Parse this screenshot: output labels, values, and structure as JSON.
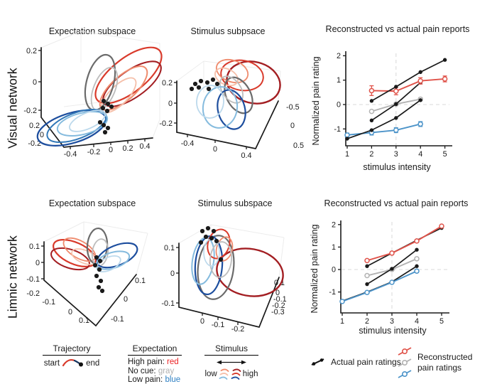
{
  "palette": {
    "red1": "#a31e22",
    "red2": "#ef8b6d",
    "red3": "#d93a2b",
    "red4": "#f5bfa9",
    "gray1": "#6b6b6b",
    "gray2": "#bdbdbd",
    "blue1": "#1d4e9e",
    "blue2": "#3178b8",
    "blue3": "#85bbde",
    "blue4": "#bcd9ec",
    "black": "#1a1a1a",
    "chart_red": "#e0534a",
    "chart_gray": "#b3b3b3",
    "chart_blue": "#4d94c9",
    "legend_red": "#ec2224",
    "legend_gray": "#b0b0b0",
    "legend_blue": "#2f80c3",
    "traj_end": "#16355e"
  },
  "rows": [
    {
      "label": "Visual network"
    },
    {
      "label": "Limnic network"
    }
  ],
  "panels": {
    "p1": {
      "title": "Expectation subspace",
      "z_ticks": [
        "0.2",
        "0",
        "-0.2"
      ],
      "d_ticks": [
        "0.2",
        "0",
        "-0.2"
      ],
      "x_ticks": [
        "-0.4",
        "-0.2",
        "0",
        "0.2",
        "0.4"
      ],
      "loops": [
        [
          "red3",
          153,
          76,
          56,
          24,
          -38,
          2.2
        ],
        [
          "red1",
          158,
          88,
          48,
          19,
          -35,
          2
        ],
        [
          "red2",
          146,
          94,
          42,
          17,
          -42,
          2
        ],
        [
          "red4",
          139,
          104,
          32,
          13,
          -45,
          1.8
        ],
        [
          "gray1",
          113,
          86,
          40,
          19,
          -75,
          2.2
        ],
        [
          "gray2",
          119,
          95,
          32,
          15,
          -68,
          1.8
        ],
        [
          "blue1",
          73,
          150,
          50,
          21,
          -17,
          2.2
        ],
        [
          "blue2",
          80,
          147,
          44,
          18,
          -21,
          2
        ],
        [
          "blue3",
          88,
          144,
          36,
          15,
          -14,
          2
        ],
        [
          "blue4",
          95,
          140,
          27,
          11,
          -24,
          1.8
        ]
      ],
      "dots": [
        [
          118,
          112
        ],
        [
          124,
          116
        ],
        [
          129,
          120
        ],
        [
          117,
          122
        ],
        [
          123,
          126
        ],
        [
          113,
          142
        ],
        [
          118,
          146
        ],
        [
          124,
          150
        ],
        [
          120,
          156
        ]
      ]
    },
    "p2": {
      "title": "Stimulus subpsace",
      "z_ticks": [
        "0.2",
        "0",
        "-0.2"
      ],
      "x_ticks": [
        "-0.4",
        "0",
        "0.4"
      ],
      "r_ticks": [
        "-0.5",
        "0",
        "0.5"
      ],
      "loops": [
        [
          "red1",
          122,
          86,
          38,
          29,
          14,
          2.4
        ],
        [
          "red3",
          106,
          76,
          30,
          21,
          10,
          2
        ],
        [
          "red2",
          92,
          70,
          23,
          15,
          20,
          1.8
        ],
        [
          "red4",
          84,
          78,
          17,
          11,
          25,
          1.8
        ],
        [
          "gray1",
          101,
          104,
          27,
          17,
          62,
          2.2
        ],
        [
          "gray2",
          91,
          96,
          21,
          13,
          55,
          1.8
        ],
        [
          "blue1",
          91,
          124,
          19,
          28,
          -14,
          2.2
        ],
        [
          "blue3",
          75,
          121,
          24,
          29,
          8,
          2
        ],
        [
          "blue4",
          61,
          113,
          19,
          23,
          4,
          1.8
        ]
      ],
      "dots": [
        [
          40,
          88
        ],
        [
          48,
          84
        ],
        [
          57,
          86
        ],
        [
          65,
          82
        ],
        [
          71,
          88
        ],
        [
          35,
          95
        ],
        [
          45,
          93
        ],
        [
          59,
          95
        ]
      ]
    },
    "p3": {
      "title": "Expectation subspace",
      "z_ticks": [
        "0.1",
        "0",
        "-0.1"
      ],
      "d_ticks": [
        "-0.2",
        "-0.1",
        "0",
        "0.1"
      ],
      "r_ticks": [
        "0.1",
        "0",
        "-0.1"
      ],
      "loops": [
        [
          "red3",
          77,
          80,
          32,
          15,
          24,
          2.2
        ],
        [
          "red1",
          71,
          88,
          28,
          13,
          18,
          2
        ],
        [
          "red2",
          84,
          75,
          25,
          12,
          30,
          1.8
        ],
        [
          "red4",
          91,
          85,
          19,
          9,
          22,
          1.6
        ],
        [
          "gray1",
          109,
          70,
          14,
          25,
          4,
          2.2
        ],
        [
          "gray2",
          113,
          79,
          11,
          19,
          8,
          1.8
        ],
        [
          "blue1",
          137,
          83,
          30,
          14,
          -22,
          2.2
        ],
        [
          "blue3",
          131,
          90,
          24,
          11,
          -17,
          2
        ],
        [
          "blue4",
          125,
          95,
          18,
          9,
          -25,
          1.8
        ]
      ],
      "dots": [
        [
          108,
          86
        ],
        [
          113,
          91
        ],
        [
          106,
          97
        ],
        [
          112,
          103
        ],
        [
          108,
          112
        ],
        [
          114,
          119
        ],
        [
          111,
          128
        ],
        [
          116,
          133
        ]
      ]
    },
    "p4": {
      "title": "Stimulus subspace",
      "z_ticks": [
        "0.1",
        "0",
        "-0.1"
      ],
      "x_ticks": [
        "0",
        "-0.1",
        "-0.2"
      ],
      "r_ticks": [
        "0.1",
        "0",
        "-0.1",
        "-0.2",
        "-0.3"
      ],
      "loops": [
        [
          "red1",
          117,
          107,
          47,
          33,
          10,
          2.4
        ],
        [
          "gray1",
          69,
          100,
          25,
          45,
          7,
          2.2
        ],
        [
          "blue1",
          59,
          97,
          19,
          41,
          4,
          2.2
        ],
        [
          "blue3",
          51,
          91,
          15,
          33,
          9,
          2
        ],
        [
          "red3",
          73,
          67,
          15,
          21,
          18,
          2
        ],
        [
          "red2",
          81,
          74,
          11,
          17,
          14,
          1.8
        ],
        [
          "gray2",
          76,
          89,
          15,
          25,
          5,
          1.8
        ],
        [
          "blue4",
          63,
          79,
          11,
          19,
          0,
          1.6
        ]
      ],
      "dots": [
        [
          50,
          49
        ],
        [
          58,
          45
        ],
        [
          66,
          49
        ],
        [
          55,
          57
        ],
        [
          63,
          59
        ],
        [
          48,
          65
        ],
        [
          70,
          63
        ],
        [
          76,
          89
        ]
      ]
    }
  },
  "chart_data": [
    {
      "type": "line",
      "title": "Reconstructed vs actual pain reports",
      "xlabel": "stimulus intensity",
      "ylabel": "Normalized pain rating",
      "xticks": [
        1,
        2,
        3,
        4,
        5
      ],
      "yticks": [
        2,
        1,
        0,
        -1
      ],
      "xlim": [
        0.9,
        5.3
      ],
      "ylim": [
        -1.9,
        2.3
      ],
      "ref_lines": {
        "x": 3,
        "y": 0
      },
      "series": [
        {
          "name": "reconstructed-no-cue",
          "color": "#b3b3b3",
          "marker": "open",
          "x": [
            2,
            3,
            4
          ],
          "y": [
            -0.28,
            0.02,
            0.22
          ],
          "err": [
            0.05,
            0.05,
            0.06
          ]
        },
        {
          "name": "reconstructed-low-pain",
          "color": "#4d94c9",
          "marker": "open",
          "x": [
            1,
            2,
            3,
            4
          ],
          "y": [
            -1.25,
            -1.15,
            -1.05,
            -0.8
          ],
          "err": [
            0.08,
            0.1,
            0.1,
            0.1
          ]
        },
        {
          "name": "actual-low-pain",
          "color": "#1a1a1a",
          "marker": "filled",
          "x": [
            1,
            2,
            3,
            4
          ],
          "y": [
            -1.4,
            -1.05,
            -0.55,
            0.18
          ]
        },
        {
          "name": "actual-no-cue",
          "color": "#1a1a1a",
          "marker": "filled",
          "x": [
            2,
            3,
            4
          ],
          "y": [
            -0.65,
            0.02,
            0.9
          ]
        },
        {
          "name": "reconstructed-high-pain",
          "color": "#e0534a",
          "marker": "open",
          "x": [
            2,
            3,
            4,
            5
          ],
          "y": [
            0.57,
            0.55,
            0.97,
            1.05
          ],
          "err": [
            0.2,
            0.15,
            0.13,
            0.12
          ]
        },
        {
          "name": "actual-high-pain",
          "color": "#1a1a1a",
          "marker": "filled",
          "x": [
            2,
            3,
            4,
            5
          ],
          "y": [
            0.15,
            0.73,
            1.33,
            1.83
          ]
        }
      ]
    },
    {
      "type": "line",
      "title": "Reconstructed vs actual pain reports",
      "xlabel": "stimulus intensity",
      "ylabel": "Normalized pain rating",
      "xticks": [
        1,
        2,
        3,
        4,
        5
      ],
      "yticks": [
        2,
        1,
        0,
        -1
      ],
      "xlim": [
        0.9,
        5.3
      ],
      "ylim": [
        -1.9,
        2.3
      ],
      "ref_lines": {
        "x": 3,
        "y": 0
      },
      "series": [
        {
          "name": "reconstructed-no-cue",
          "color": "#b3b3b3",
          "marker": "open",
          "x": [
            2,
            3,
            4
          ],
          "y": [
            -0.27,
            0.0,
            0.48
          ],
          "err": [
            0.03,
            0.04,
            0.04
          ]
        },
        {
          "name": "actual-no-cue",
          "color": "#1a1a1a",
          "marker": "filled",
          "x": [
            2,
            3,
            4
          ],
          "y": [
            -0.65,
            0.03,
            0.88
          ]
        },
        {
          "name": "actual-low-pain",
          "color": "#1a1a1a",
          "marker": "filled",
          "x": [
            1,
            2,
            3,
            4
          ],
          "y": [
            -1.4,
            -1.0,
            -0.55,
            0.15
          ]
        },
        {
          "name": "reconstructed-low-pain",
          "color": "#4d94c9",
          "marker": "open",
          "x": [
            1,
            2,
            3,
            4
          ],
          "y": [
            -1.42,
            -1.02,
            -0.57,
            -0.07
          ],
          "err": [
            0.03,
            0.04,
            0.05,
            0.06
          ]
        },
        {
          "name": "actual-high-pain",
          "color": "#1a1a1a",
          "marker": "filled",
          "x": [
            2,
            3,
            4,
            5
          ],
          "y": [
            0.15,
            0.73,
            1.3,
            1.85
          ]
        },
        {
          "name": "reconstructed-high-pain",
          "color": "#e0534a",
          "marker": "open",
          "x": [
            2,
            3,
            4,
            5
          ],
          "y": [
            0.4,
            0.73,
            1.27,
            1.93
          ],
          "err": [
            0.04,
            0.04,
            0.06,
            0.04
          ]
        }
      ]
    }
  ],
  "legend": {
    "trajectory": {
      "title": "Trajectory",
      "start": "start",
      "end": "end"
    },
    "expectation": {
      "title": "Expectation",
      "items": [
        {
          "label": "High pain: ",
          "value": "red",
          "color": "#ec2224"
        },
        {
          "label": "No cue: ",
          "value": "gray",
          "color": "#b0b0b0"
        },
        {
          "label": "Low pain: ",
          "value": "blue",
          "color": "#2f80c3"
        }
      ]
    },
    "stimulus": {
      "title": "Stimulus",
      "low": "low",
      "high": "high"
    },
    "actual": "Actual pain ratings",
    "reconstructed_line1": "Reconstructed",
    "reconstructed_line2": "pain ratings"
  }
}
